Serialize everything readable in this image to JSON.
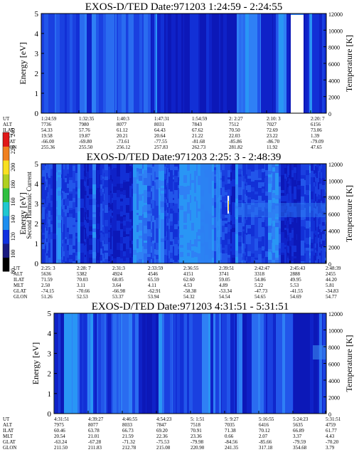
{
  "chart_data": [
    {
      "type": "heatmap",
      "title": "EXOS-D/TED   Date:971203   1:24:59 - 2:24:55",
      "ylabel": "Energy [eV]",
      "y2label": "Temperature [K]",
      "ylim": [
        0,
        5
      ],
      "y2lim": [
        0,
        12000
      ],
      "yticks": [
        "0",
        "1",
        "2",
        "3",
        "4",
        "5"
      ],
      "y2ticks": [
        "0",
        "2000",
        "4000",
        "6000",
        "8000",
        "10000",
        "12000"
      ],
      "row_labels": [
        "UT",
        "ALT",
        "ILAT",
        "MLT",
        "GLAT",
        "GLON"
      ],
      "columns": [
        [
          "1:24:59",
          "7736",
          "54.33",
          "19.58",
          "-66.00",
          "255.36"
        ],
        [
          "1:32:35",
          "7980",
          "57.76",
          "19.87",
          "-69.80",
          "255.50"
        ],
        [
          "1:40:3",
          "8077",
          "61.12",
          "20.21",
          "-73.61",
          "256.12"
        ],
        [
          "1:47:31",
          "8031",
          "64.43",
          "20.64",
          "-77.55",
          "257.83"
        ],
        [
          "1:54:59",
          "7843",
          "67.62",
          "21.22",
          "-81.68",
          "262.73"
        ],
        [
          "2: 2:27",
          "7512",
          "70.50",
          "22.03",
          "-85.86",
          "281.82"
        ],
        [
          "2:10: 3",
          "7027",
          "72.69",
          "23.22",
          "-86.70",
          "11.92"
        ],
        [
          "2:20: 7",
          "6156",
          "73.06",
          "1.39",
          "-79.09",
          "47.65"
        ]
      ],
      "data_gap": true,
      "background": "blue"
    },
    {
      "type": "heatmap",
      "title": "EXOS-D/TED   Date:971203   2:25: 3 - 2:48:39",
      "ylabel": "Energy [eV]",
      "y2label": "Temperature [K]",
      "ylim": [
        0,
        5
      ],
      "y2lim": [
        0,
        12000
      ],
      "yticks": [
        "0",
        "1",
        "2",
        "3",
        "4",
        "5"
      ],
      "y2ticks": [
        "0",
        "2000",
        "4000",
        "6000",
        "8000",
        "10000",
        "12000"
      ],
      "row_labels": [
        "UT",
        "ALT",
        "ILAT",
        "MLT",
        "GLAT",
        "GLON"
      ],
      "columns": [
        [
          "2:25: 3",
          "5636",
          "71.59",
          "2.50",
          "-74.15",
          "51.26"
        ],
        [
          "2:28: 7",
          "5382",
          "70.03",
          "3.11",
          "-70.66",
          "52.53"
        ],
        [
          "2:31:3",
          "4924",
          "68.05",
          "3.64",
          "-66.98",
          "53.37"
        ],
        [
          "2:33:59",
          "4546",
          "65.59",
          "4.11",
          "-62.91",
          "53.94"
        ],
        [
          "2:36:55",
          "4151",
          "62.60",
          "4.53",
          "-58.38",
          "54.32"
        ],
        [
          "2:39:51",
          "3741",
          "59.05",
          "4.89",
          "-53.34",
          "54.54"
        ],
        [
          "2:42:47",
          "3318",
          "54.86",
          "5.22",
          "-47.73",
          "54.65"
        ],
        [
          "2:45:43",
          "2888",
          "49.95",
          "5.53",
          "-41.55",
          "54.69"
        ],
        [
          "2:48:39",
          "2455",
          "44.20",
          "5.81",
          "-34.83",
          "54.77"
        ]
      ],
      "colorbar": {
        "label": "Second Harmonic Current",
        "ticks": [
          "80",
          "100",
          "120",
          "140",
          "160",
          "180",
          "200",
          "220",
          "240"
        ],
        "range": [
          80,
          240
        ]
      },
      "background": "blue"
    },
    {
      "type": "heatmap",
      "title": "EXOS-D/TED   Date:971203   4:31:51 - 5:31:51",
      "ylabel": "Energy [eV]",
      "y2label": "Temperature [K]",
      "ylim": [
        0,
        5
      ],
      "y2lim": [
        0,
        12000
      ],
      "yticks": [
        "0",
        "1",
        "2",
        "3",
        "4",
        "5"
      ],
      "y2ticks": [
        "0",
        "2000",
        "4000",
        "6000",
        "8000",
        "10000",
        "12000"
      ],
      "row_labels": [
        "UT",
        "ALT",
        "ILAT",
        "MLT",
        "GLAT",
        "GLON"
      ],
      "columns": [
        [
          "4:31:51",
          "7975",
          "60.46",
          "20.54",
          "-63.24",
          "211.50"
        ],
        [
          "4:39:27",
          "8077",
          "63.78",
          "21.01",
          "-67.28",
          "211.83"
        ],
        [
          "4:46:55",
          "8033",
          "66.73",
          "21.59",
          "-71.32",
          "212.78"
        ],
        [
          "4:54:23",
          "7847",
          "69.20",
          "22.36",
          "-75.53",
          "215.08"
        ],
        [
          "5: 1:51",
          "7518",
          "70.91",
          "23.36",
          "-79.98",
          "220.90"
        ],
        [
          "5: 9:27",
          "7035",
          "71.38",
          "0.66",
          "-84.56",
          "241.35"
        ],
        [
          "5:16:55",
          "6416",
          "70.12",
          "2.07",
          "-85.66",
          "317.18"
        ],
        [
          "5:24:23",
          "5635",
          "66.89",
          "3.37",
          "-79.59",
          "354.68"
        ],
        [
          "5:31:51",
          "4759",
          "61.77",
          "4.43",
          "-70.20",
          "3.79"
        ]
      ],
      "background": "blue"
    }
  ]
}
